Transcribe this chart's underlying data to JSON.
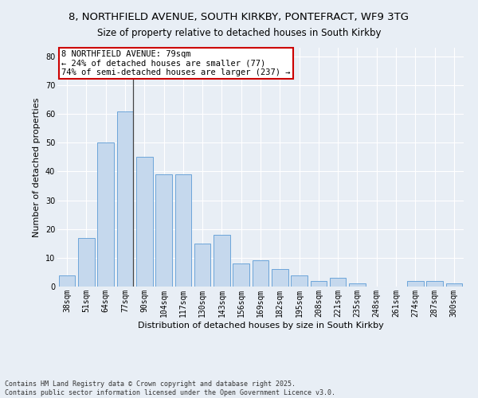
{
  "title1": "8, NORTHFIELD AVENUE, SOUTH KIRKBY, PONTEFRACT, WF9 3TG",
  "title2": "Size of property relative to detached houses in South Kirkby",
  "xlabel": "Distribution of detached houses by size in South Kirkby",
  "ylabel": "Number of detached properties",
  "categories": [
    "38sqm",
    "51sqm",
    "64sqm",
    "77sqm",
    "90sqm",
    "104sqm",
    "117sqm",
    "130sqm",
    "143sqm",
    "156sqm",
    "169sqm",
    "182sqm",
    "195sqm",
    "208sqm",
    "221sqm",
    "235sqm",
    "248sqm",
    "261sqm",
    "274sqm",
    "287sqm",
    "300sqm"
  ],
  "values": [
    4,
    17,
    50,
    61,
    45,
    39,
    39,
    15,
    18,
    8,
    9,
    6,
    4,
    2,
    3,
    1,
    0,
    0,
    2,
    2,
    1
  ],
  "bar_color": "#c5d8ed",
  "bar_edge_color": "#5b9bd5",
  "vline_index": 3,
  "ylim": [
    0,
    83
  ],
  "yticks": [
    0,
    10,
    20,
    30,
    40,
    50,
    60,
    70,
    80
  ],
  "annotation_line1": "8 NORTHFIELD AVENUE: 79sqm",
  "annotation_line2": "← 24% of detached houses are smaller (77)",
  "annotation_line3": "74% of semi-detached houses are larger (237) →",
  "annotation_box_color": "#ffffff",
  "annotation_border_color": "#cc0000",
  "background_color": "#e8eef5",
  "plot_bg_color": "#e8eef5",
  "grid_color": "#ffffff",
  "footer_line1": "Contains HM Land Registry data © Crown copyright and database right 2025.",
  "footer_line2": "Contains public sector information licensed under the Open Government Licence v3.0.",
  "title_fontsize": 9.5,
  "subtitle_fontsize": 8.5,
  "axis_label_fontsize": 8,
  "tick_fontsize": 7,
  "annotation_fontsize": 7.5,
  "footer_fontsize": 6
}
